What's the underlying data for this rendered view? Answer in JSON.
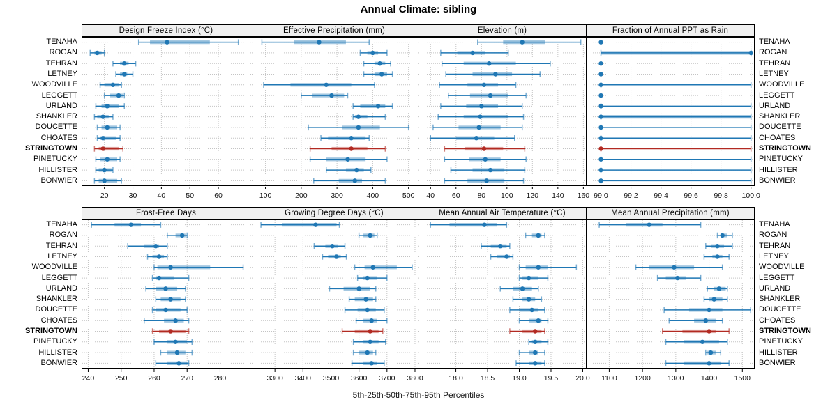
{
  "title": "Annual Climate: sibling",
  "caption": "5th-25th-50th-75th-95th Percentiles",
  "locations": [
    "TENAHA",
    "ROGAN",
    "TEHRAN",
    "LETNEY",
    "WOODVILLE",
    "LEGGETT",
    "URLAND",
    "SHANKLER",
    "DOUCETTE",
    "CHOATES",
    "STRINGTOWN",
    "PINETUCKY",
    "HILLISTER",
    "BONWIER"
  ],
  "highlight_location": "STRINGTOWN",
  "colors": {
    "series_blue": "#1f77b4",
    "highlight_red": "#b22a22",
    "strip_bg": "#f0f0f0",
    "grid": "#c4c4c4",
    "border": "#000000"
  },
  "percentiles": [
    5,
    25,
    50,
    75,
    95
  ],
  "chart_data": [
    {
      "type": "percentile_dot_plot",
      "panel": "Design Freeze Index (°C)",
      "row": 0,
      "col": 0,
      "xlim": [
        12,
        71
      ],
      "tick_values": [
        20,
        30,
        40,
        50,
        60
      ],
      "tick_labels": [
        "20",
        "30",
        "40",
        "50",
        "60"
      ],
      "values": {
        "TENAHA": [
          32,
          36,
          42,
          57,
          67
        ],
        "ROGAN": [
          15,
          16.5,
          17.5,
          19,
          20
        ],
        "TEHRAN": [
          23,
          25.5,
          27,
          28.5,
          31
        ],
        "LETNEY": [
          24,
          25.5,
          27,
          28,
          30
        ],
        "WOODVILLE": [
          18.5,
          20,
          23,
          25,
          26
        ],
        "LEGGETT": [
          20,
          22,
          25,
          26.5,
          27
        ],
        "URLAND": [
          17,
          19,
          21,
          25,
          27
        ],
        "SHANKLER": [
          16.5,
          17.5,
          19.5,
          21.5,
          23
        ],
        "DOUCETTE": [
          17.5,
          19,
          21,
          24.5,
          25.5
        ],
        "CHOATES": [
          17.5,
          18.5,
          19.5,
          24,
          25.5
        ],
        "STRINGTOWN": [
          16.5,
          18,
          19.5,
          25,
          26.5
        ],
        "PINETUCKY": [
          17,
          18.5,
          21,
          24.5,
          25.5
        ],
        "HILLISTER": [
          17,
          18,
          20,
          22.5,
          23
        ],
        "BONWIER": [
          16.5,
          18,
          20,
          24.5,
          26
        ]
      }
    },
    {
      "type": "percentile_dot_plot",
      "panel": "Effective Precipitation (mm)",
      "row": 0,
      "col": 1,
      "xlim": [
        56,
        526
      ],
      "tick_values": [
        100,
        200,
        300,
        400,
        500
      ],
      "tick_labels": [
        "100",
        "200",
        "300",
        "400",
        "500"
      ],
      "values": {
        "TENAHA": [
          90,
          180,
          250,
          325,
          390
        ],
        "ROGAN": [
          365,
          385,
          400,
          415,
          440
        ],
        "TEHRAN": [
          375,
          405,
          420,
          435,
          450
        ],
        "LETNEY": [
          375,
          405,
          425,
          440,
          455
        ],
        "WOODVILLE": [
          95,
          170,
          270,
          340,
          405
        ],
        "LEGGETT": [
          200,
          230,
          285,
          320,
          330
        ],
        "URLAND": [
          345,
          365,
          415,
          435,
          455
        ],
        "SHANKLER": [
          345,
          350,
          360,
          385,
          435
        ],
        "DOUCETTE": [
          220,
          315,
          360,
          420,
          500
        ],
        "CHOATES": [
          255,
          275,
          340,
          380,
          390
        ],
        "STRINGTOWN": [
          225,
          285,
          340,
          385,
          435
        ],
        "PINETUCKY": [
          225,
          270,
          330,
          380,
          440
        ],
        "HILLISTER": [
          270,
          325,
          355,
          375,
          395
        ],
        "BONWIER": [
          235,
          305,
          350,
          370,
          435
        ]
      }
    },
    {
      "type": "percentile_dot_plot",
      "panel": "Elevation (m)",
      "row": 0,
      "col": 2,
      "xlim": [
        30,
        162
      ],
      "tick_values": [
        40,
        60,
        80,
        100,
        120,
        140,
        160
      ],
      "tick_labels": [
        "40",
        "60",
        "80",
        "100",
        "120",
        "140",
        "160"
      ],
      "values": {
        "TENAHA": [
          77,
          97,
          112,
          130,
          158
        ],
        "ROGAN": [
          48,
          61,
          73,
          83,
          101
        ],
        "TEHRAN": [
          49,
          66,
          86,
          107,
          134
        ],
        "LETNEY": [
          52,
          73,
          91,
          104,
          126
        ],
        "WOODVILLE": [
          47,
          69,
          82,
          93,
          107
        ],
        "LEGGETT": [
          54,
          71,
          87,
          101,
          115
        ],
        "URLAND": [
          48,
          68,
          80,
          93,
          112
        ],
        "SHANKLER": [
          46,
          66,
          79,
          101,
          113
        ],
        "DOUCETTE": [
          42,
          62,
          78,
          95,
          112
        ],
        "CHOATES": [
          40,
          60,
          76,
          90,
          106
        ],
        "STRINGTOWN": [
          51,
          67,
          82,
          97,
          114
        ],
        "PINETUCKY": [
          51,
          70,
          83,
          95,
          115
        ],
        "HILLISTER": [
          56,
          73,
          87,
          98,
          114
        ],
        "BONWIER": [
          51,
          69,
          84,
          98,
          113
        ]
      }
    },
    {
      "type": "percentile_dot_plot",
      "panel": "Fraction of Annual PPT as Rain",
      "row": 0,
      "col": 3,
      "xlim": [
        98.9,
        100.02
      ],
      "tick_values": [
        99.0,
        99.2,
        99.4,
        99.6,
        99.8,
        100.0
      ],
      "tick_labels": [
        "99.0",
        "99.2",
        "99.4",
        "99.6",
        "99.8",
        "100.0"
      ],
      "values": {
        "TENAHA": [
          99.0,
          99.0,
          99.0,
          99.0,
          99.0
        ],
        "ROGAN": [
          99.0,
          99.0,
          100.0,
          100.0,
          100.0
        ],
        "TEHRAN": [
          99.0,
          99.0,
          99.0,
          99.0,
          99.0
        ],
        "LETNEY": [
          99.0,
          99.0,
          99.0,
          99.0,
          99.0
        ],
        "WOODVILLE": [
          99.0,
          99.0,
          99.0,
          99.0,
          100.0
        ],
        "LEGGETT": [
          99.0,
          99.0,
          99.0,
          99.0,
          99.0
        ],
        "URLAND": [
          99.0,
          99.0,
          99.0,
          99.0,
          100.0
        ],
        "SHANKLER": [
          99.0,
          99.0,
          99.0,
          100.0,
          100.0
        ],
        "DOUCETTE": [
          99.0,
          99.0,
          99.0,
          99.0,
          100.0
        ],
        "CHOATES": [
          99.0,
          99.0,
          99.0,
          99.0,
          100.0
        ],
        "STRINGTOWN": [
          99.0,
          99.0,
          99.0,
          99.0,
          100.0
        ],
        "PINETUCKY": [
          99.0,
          99.0,
          99.0,
          99.0,
          100.0
        ],
        "HILLISTER": [
          99.0,
          99.0,
          99.0,
          99.0,
          100.0
        ],
        "BONWIER": [
          99.0,
          99.0,
          99.0,
          99.0,
          100.0
        ]
      }
    },
    {
      "type": "percentile_dot_plot",
      "panel": "Frost-Free Days",
      "row": 1,
      "col": 0,
      "xlim": [
        238,
        289
      ],
      "tick_values": [
        240,
        250,
        260,
        270,
        280
      ],
      "tick_labels": [
        "240",
        "250",
        "260",
        "270",
        "280"
      ],
      "values": {
        "TENAHA": [
          241,
          248,
          253,
          256,
          262
        ],
        "ROGAN": [
          264,
          266.5,
          268.5,
          269.5,
          270
        ],
        "TEHRAN": [
          252,
          257,
          260.5,
          261.5,
          264
        ],
        "LETNEY": [
          258,
          259.5,
          261.5,
          263,
          264
        ],
        "WOODVILLE": [
          260,
          261,
          265,
          277,
          287
        ],
        "LEGGETT": [
          259.5,
          260.5,
          261.5,
          266,
          270.5
        ],
        "URLAND": [
          257.5,
          260.5,
          263.5,
          267,
          269.5
        ],
        "SHANKLER": [
          260.5,
          262,
          265,
          268,
          269.5
        ],
        "DOUCETTE": [
          259.5,
          260.5,
          263.5,
          268,
          270
        ],
        "CHOATES": [
          257,
          263,
          266.5,
          269,
          270.5
        ],
        "STRINGTOWN": [
          259.5,
          261.5,
          265,
          269.5,
          270.5
        ],
        "PINETUCKY": [
          260,
          264,
          266.5,
          270,
          271.5
        ],
        "HILLISTER": [
          262,
          264,
          267,
          269.5,
          271.5
        ],
        "BONWIER": [
          260.5,
          264,
          267.5,
          270,
          270.5
        ]
      }
    },
    {
      "type": "percentile_dot_plot",
      "panel": "Growing Degree Days (°C)",
      "row": 1,
      "col": 1,
      "xlim": [
        3210,
        3810
      ],
      "tick_values": [
        3300,
        3400,
        3500,
        3600,
        3700,
        3800
      ],
      "tick_labels": [
        "3300",
        "3400",
        "3500",
        "3600",
        "3700",
        "3800"
      ],
      "values": {
        "TENAHA": [
          3250,
          3325,
          3445,
          3520,
          3530
        ],
        "ROGAN": [
          3600,
          3615,
          3640,
          3655,
          3665
        ],
        "TEHRAN": [
          3440,
          3480,
          3505,
          3525,
          3550
        ],
        "LETNEY": [
          3470,
          3490,
          3520,
          3535,
          3555
        ],
        "WOODVILLE": [
          3585,
          3620,
          3650,
          3735,
          3790
        ],
        "LEGGETT": [
          3595,
          3615,
          3630,
          3665,
          3700
        ],
        "URLAND": [
          3495,
          3545,
          3600,
          3640,
          3660
        ],
        "SHANKLER": [
          3565,
          3585,
          3625,
          3650,
          3660
        ],
        "DOUCETTE": [
          3550,
          3595,
          3630,
          3660,
          3690
        ],
        "CHOATES": [
          3590,
          3615,
          3645,
          3665,
          3700
        ],
        "STRINGTOWN": [
          3540,
          3585,
          3640,
          3670,
          3685
        ],
        "PINETUCKY": [
          3580,
          3615,
          3640,
          3670,
          3695
        ],
        "HILLISTER": [
          3580,
          3600,
          3630,
          3650,
          3660
        ],
        "BONWIER": [
          3575,
          3615,
          3645,
          3665,
          3690
        ]
      }
    },
    {
      "type": "percentile_dot_plot",
      "panel": "Mean Annual Air Temperature (°C)",
      "row": 1,
      "col": 2,
      "xlim": [
        17.4,
        20.05
      ],
      "tick_values": [
        18.0,
        18.5,
        19.0,
        19.5,
        20.0
      ],
      "tick_labels": [
        "18.0",
        "18.5",
        "19.0",
        "19.5",
        "20.0"
      ],
      "values": {
        "TENAHA": [
          17.6,
          17.9,
          18.45,
          18.65,
          18.8
        ],
        "ROGAN": [
          19.1,
          19.2,
          19.3,
          19.35,
          19.4
        ],
        "TEHRAN": [
          18.4,
          18.55,
          18.7,
          18.8,
          18.85
        ],
        "LETNEY": [
          18.55,
          18.65,
          18.8,
          18.85,
          18.9
        ],
        "WOODVILLE": [
          19.0,
          19.1,
          19.3,
          19.45,
          19.9
        ],
        "LEGGETT": [
          19.0,
          19.05,
          19.15,
          19.3,
          19.45
        ],
        "URLAND": [
          18.7,
          18.9,
          19.05,
          19.2,
          19.3
        ],
        "SHANKLER": [
          18.9,
          19.05,
          19.15,
          19.25,
          19.35
        ],
        "DOUCETTE": [
          18.85,
          19.0,
          19.2,
          19.3,
          19.4
        ],
        "CHOATES": [
          19.0,
          19.15,
          19.3,
          19.35,
          19.45
        ],
        "STRINGTOWN": [
          18.85,
          19.05,
          19.25,
          19.35,
          19.4
        ],
        "PINETUCKY": [
          19.15,
          19.2,
          19.25,
          19.35,
          19.45
        ],
        "HILLISTER": [
          19.0,
          19.15,
          19.25,
          19.3,
          19.4
        ],
        "BONWIER": [
          18.95,
          19.15,
          19.25,
          19.35,
          19.4
        ]
      }
    },
    {
      "type": "percentile_dot_plot",
      "panel": "Mean Annual Precipitation (mm)",
      "row": 1,
      "col": 3,
      "xlim": [
        1030,
        1535
      ],
      "tick_values": [
        1100,
        1200,
        1300,
        1400,
        1500
      ],
      "tick_labels": [
        "1100",
        "1200",
        "1300",
        "1400",
        "1500"
      ],
      "values": {
        "TENAHA": [
          1070,
          1150,
          1220,
          1260,
          1375
        ],
        "ROGAN": [
          1425,
          1435,
          1440,
          1455,
          1470
        ],
        "TEHRAN": [
          1390,
          1405,
          1425,
          1445,
          1470
        ],
        "LETNEY": [
          1385,
          1410,
          1425,
          1440,
          1460
        ],
        "WOODVILLE": [
          1180,
          1220,
          1295,
          1355,
          1440
        ],
        "LEGGETT": [
          1245,
          1270,
          1305,
          1330,
          1375
        ],
        "URLAND": [
          1395,
          1415,
          1430,
          1450,
          1455
        ],
        "SHANKLER": [
          1385,
          1400,
          1415,
          1440,
          1455
        ],
        "DOUCETTE": [
          1265,
          1340,
          1400,
          1440,
          1525
        ],
        "CHOATES": [
          1280,
          1355,
          1390,
          1420,
          1440
        ],
        "STRINGTOWN": [
          1260,
          1320,
          1400,
          1420,
          1460
        ],
        "PINETUCKY": [
          1270,
          1325,
          1380,
          1430,
          1455
        ],
        "HILLISTER": [
          1390,
          1395,
          1405,
          1420,
          1435
        ],
        "BONWIER": [
          1270,
          1325,
          1400,
          1435,
          1460
        ]
      }
    }
  ]
}
